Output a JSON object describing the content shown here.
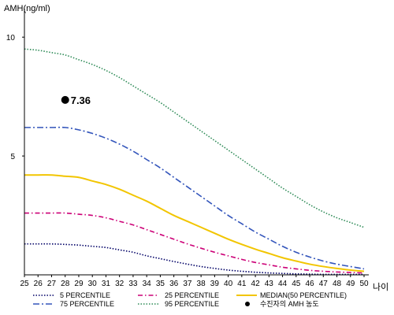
{
  "chart_data": {
    "type": "line",
    "ylabel": "AMH(ng/ml)",
    "xlabel": "나이",
    "x": [
      25,
      26,
      27,
      28,
      29,
      30,
      31,
      32,
      33,
      34,
      35,
      36,
      37,
      38,
      39,
      40,
      41,
      42,
      43,
      44,
      45,
      46,
      47,
      48,
      49,
      50
    ],
    "xlim": [
      25,
      50
    ],
    "ylim": [
      0,
      11
    ],
    "yticks": [
      5,
      10
    ],
    "grid": false,
    "legend_position": "bottom",
    "series": [
      {
        "name": "5 PERCENTILE",
        "color": "#000066",
        "dash": "dotted",
        "values": [
          1.3,
          1.3,
          1.3,
          1.28,
          1.25,
          1.2,
          1.15,
          1.05,
          0.95,
          0.8,
          0.68,
          0.56,
          0.45,
          0.35,
          0.27,
          0.2,
          0.15,
          0.11,
          0.08,
          0.06,
          0.04,
          0.03,
          0.02,
          0.02,
          0.02,
          0.02
        ]
      },
      {
        "name": "25 PERCENTILE",
        "color": "#cc0077",
        "dash": "dashdot",
        "values": [
          2.6,
          2.6,
          2.6,
          2.6,
          2.55,
          2.5,
          2.4,
          2.25,
          2.1,
          1.9,
          1.7,
          1.5,
          1.3,
          1.12,
          0.95,
          0.8,
          0.65,
          0.52,
          0.42,
          0.32,
          0.25,
          0.19,
          0.15,
          0.12,
          0.1,
          0.08
        ]
      },
      {
        "name": "MEDIAN(50 PERCENTILE)",
        "color": "#f2c500",
        "dash": "solid",
        "values": [
          4.2,
          4.2,
          4.2,
          4.15,
          4.1,
          3.95,
          3.8,
          3.6,
          3.35,
          3.1,
          2.8,
          2.5,
          2.25,
          2.0,
          1.75,
          1.5,
          1.28,
          1.08,
          0.9,
          0.72,
          0.58,
          0.45,
          0.35,
          0.27,
          0.2,
          0.15
        ]
      },
      {
        "name": "75 PERCENTILE",
        "color": "#3355bb",
        "dash": "longdashdot",
        "values": [
          6.2,
          6.2,
          6.2,
          6.2,
          6.1,
          5.95,
          5.75,
          5.5,
          5.2,
          4.85,
          4.5,
          4.1,
          3.7,
          3.3,
          2.9,
          2.5,
          2.15,
          1.8,
          1.5,
          1.2,
          0.95,
          0.75,
          0.58,
          0.45,
          0.35,
          0.25
        ]
      },
      {
        "name": "95 PERCENTILE",
        "color": "#2e8b57",
        "dash": "dotted",
        "values": [
          9.5,
          9.45,
          9.35,
          9.25,
          9.05,
          8.85,
          8.6,
          8.3,
          7.95,
          7.6,
          7.25,
          6.85,
          6.45,
          6.05,
          5.65,
          5.25,
          4.85,
          4.45,
          4.05,
          3.65,
          3.3,
          2.95,
          2.65,
          2.4,
          2.2,
          2.0
        ]
      }
    ],
    "point": {
      "name": "수진자의 AMH 농도",
      "x": 28,
      "y": 7.36,
      "label": "7.36",
      "color": "#000000"
    }
  }
}
